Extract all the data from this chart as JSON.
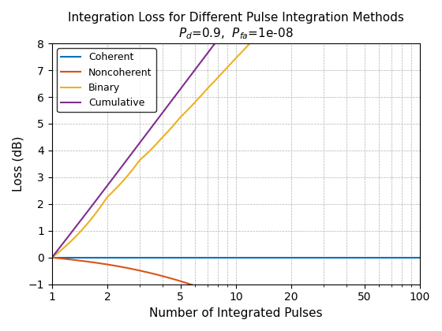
{
  "title_line1": "Integration Loss for Different Pulse Integration Methods",
  "title_line2": "$P_d$=0.9,  $P_{fa}$=1e-08",
  "xlabel": "Number of Integrated Pulses",
  "ylabel": "Loss (dB)",
  "xlim": [
    1,
    100
  ],
  "ylim": [
    -1,
    8
  ],
  "xticks": [
    1,
    2,
    5,
    10,
    20,
    50,
    100
  ],
  "yticks": [
    -1,
    0,
    1,
    2,
    3,
    4,
    5,
    6,
    7,
    8
  ],
  "colors": {
    "Coherent": "#0072BD",
    "Noncoherent": "#D95319",
    "Binary": "#EDB120",
    "Cumulative": "#7E2F8E"
  },
  "Pd": 0.9,
  "Pfa": 1e-08,
  "legend_labels": [
    "Coherent",
    "Noncoherent",
    "Binary",
    "Cumulative"
  ],
  "figsize": [
    5.6,
    4.2
  ],
  "dpi": 100,
  "background_color": "#ffffff",
  "grid_color": "#b0b0b0",
  "linewidth": 1.5
}
